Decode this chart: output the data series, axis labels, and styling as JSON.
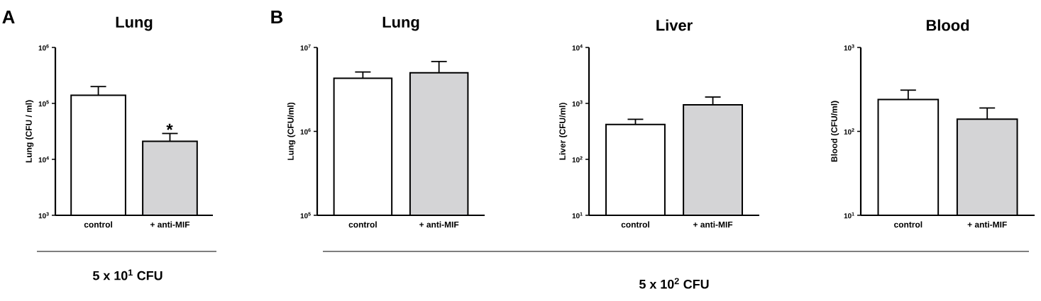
{
  "chart_data": [
    {
      "type": "bar",
      "title": "Lung",
      "ylabel": "Lung (CFU / ml)",
      "categories": [
        "control",
        "+ anti-MIF"
      ],
      "values": [
        140000,
        21000
      ],
      "errors": [
        [
          140000,
          200000
        ],
        [
          21000,
          29000
        ]
      ],
      "colors": [
        "#ffffff",
        "#d4d4d6"
      ],
      "log": true,
      "ylim": [
        1000,
        1000000
      ],
      "yticks": [
        {
          "value": 1000,
          "label": "10$^{3}$"
        },
        {
          "value": 10000,
          "label": "10$^{4}$"
        },
        {
          "value": 100000,
          "label": "10$^{5}$"
        },
        {
          "value": 1000000,
          "label": "10$^{6}$"
        }
      ],
      "annotations": [
        "A",
        "*",
        "5 x 10$^{1}$ CFU"
      ]
    },
    {
      "type": "bar",
      "title": "Lung",
      "ylabel": "Lung (CFU/ml)",
      "categories": [
        "control",
        "+ anti-MIF"
      ],
      "values": [
        4300000,
        5000000
      ],
      "errors": [
        [
          4300000,
          5100000
        ],
        [
          5000000,
          6800000
        ]
      ],
      "colors": [
        "#ffffff",
        "#d4d4d6"
      ],
      "log": true,
      "ylim": [
        100000,
        10000000
      ],
      "yticks": [
        {
          "value": 100000,
          "label": "10$^{5}$"
        },
        {
          "value": 1000000,
          "label": "10$^{6}$"
        },
        {
          "value": 10000000,
          "label": "10$^{7}$"
        }
      ],
      "annotations": [
        "B"
      ]
    },
    {
      "type": "bar",
      "title": "Liver",
      "ylabel": "Liver (CFU/ml)",
      "categories": [
        "control",
        "+ anti-MIF"
      ],
      "values": [
        420,
        940
      ],
      "errors": [
        [
          420,
          520
        ],
        [
          940,
          1300
        ]
      ],
      "colors": [
        "#ffffff",
        "#d4d4d6"
      ],
      "log": true,
      "ylim": [
        10,
        10000
      ],
      "yticks": [
        {
          "value": 10,
          "label": "10$^{1}$"
        },
        {
          "value": 100,
          "label": "10$^{2}$"
        },
        {
          "value": 1000,
          "label": "10$^{3}$"
        },
        {
          "value": 10000,
          "label": "10$^{4}$"
        }
      ],
      "annotations": [
        "5 x 10$^{2}$ CFU"
      ]
    },
    {
      "type": "bar",
      "title": "Blood",
      "ylabel": "Blood (CFU/ml)",
      "categories": [
        "control",
        "+ anti-MIF"
      ],
      "values": [
        240,
        140
      ],
      "errors": [
        [
          240,
          310
        ],
        [
          140,
          190
        ]
      ],
      "colors": [
        "#ffffff",
        "#d4d4d6"
      ],
      "log": true,
      "ylim": [
        10,
        1000
      ],
      "yticks": [
        {
          "value": 10,
          "label": "10$^{1}$"
        },
        {
          "value": 100,
          "label": "10$^{2}$"
        },
        {
          "value": 1000,
          "label": "10$^{3}$"
        }
      ]
    }
  ]
}
